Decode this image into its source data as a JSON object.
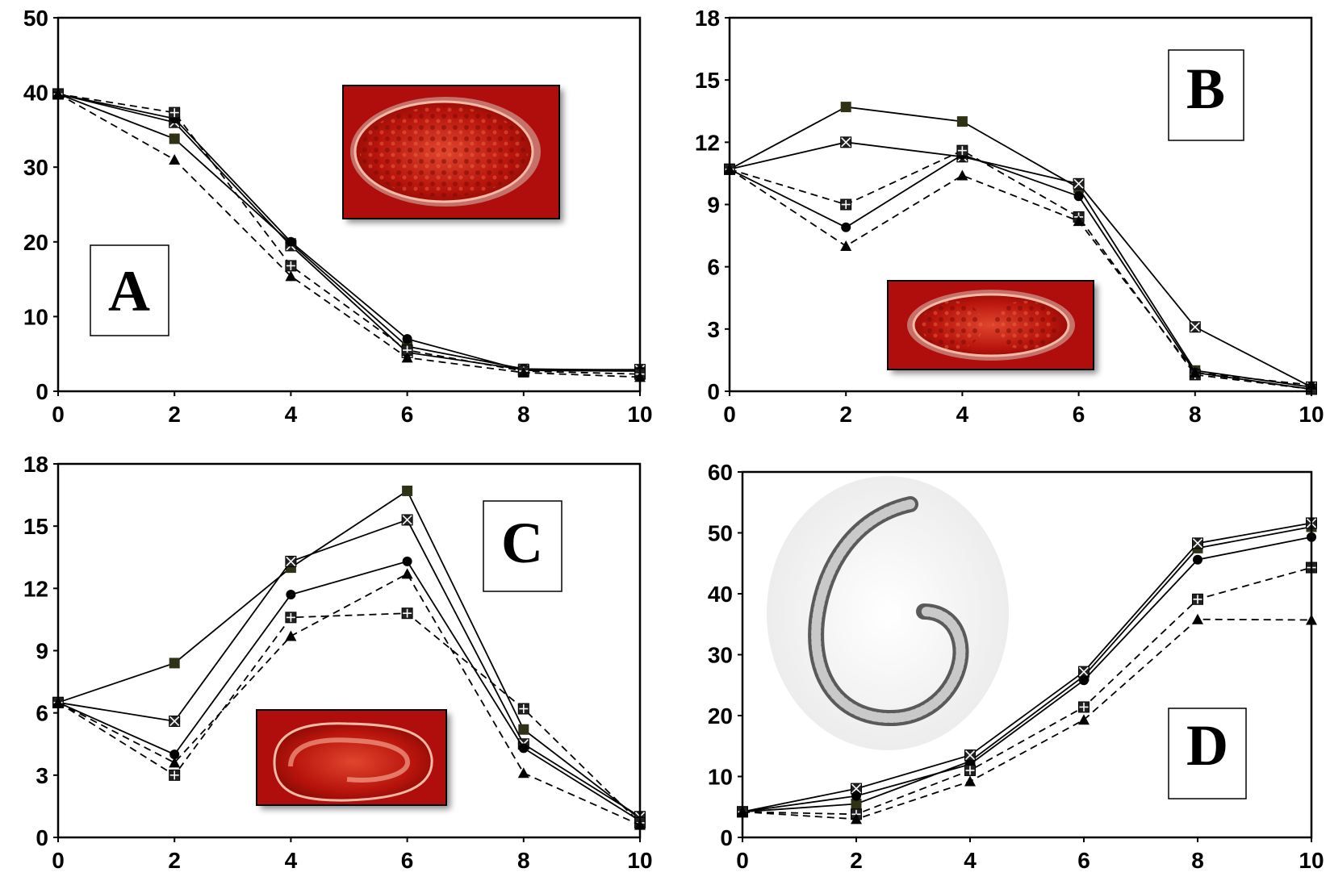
{
  "chart_data": [
    {
      "panel": "A",
      "type": "line",
      "x": [
        0,
        2,
        4,
        6,
        8,
        10
      ],
      "ylim": [
        0,
        50
      ],
      "yticks": [
        0,
        10,
        20,
        30,
        40,
        50
      ],
      "xticks": [
        0,
        2,
        4,
        6,
        8,
        10
      ],
      "title": "",
      "xlabel": "",
      "ylabel": "",
      "series": [
        {
          "marker": "square-filled",
          "dash": "solid",
          "values": [
            39.8,
            33.8,
            19.8,
            6.0,
            3.0,
            2.8
          ]
        },
        {
          "marker": "square-x",
          "dash": "solid",
          "values": [
            39.8,
            36.0,
            19.5,
            5.2,
            2.9,
            2.9
          ]
        },
        {
          "marker": "circle",
          "dash": "solid",
          "values": [
            39.8,
            36.5,
            20.0,
            7.0,
            2.8,
            2.7
          ]
        },
        {
          "marker": "square-cross",
          "dash": "dashed",
          "values": [
            39.8,
            37.3,
            16.8,
            5.5,
            2.7,
            2.3
          ]
        },
        {
          "marker": "triangle",
          "dash": "dashed",
          "values": [
            39.8,
            31.0,
            15.4,
            4.5,
            2.5,
            1.9
          ]
        }
      ]
    },
    {
      "panel": "B",
      "type": "line",
      "x": [
        0,
        2,
        4,
        6,
        8,
        10
      ],
      "ylim": [
        0,
        18
      ],
      "yticks": [
        0,
        3,
        6,
        9,
        12,
        15,
        18
      ],
      "xticks": [
        0,
        2,
        4,
        6,
        8,
        10
      ],
      "title": "",
      "xlabel": "",
      "ylabel": "",
      "series": [
        {
          "marker": "square-filled",
          "dash": "solid",
          "values": [
            10.7,
            13.7,
            13.0,
            9.8,
            1.0,
            0.2
          ]
        },
        {
          "marker": "square-x",
          "dash": "solid",
          "values": [
            10.7,
            12.0,
            11.3,
            10.0,
            3.1,
            0.2
          ]
        },
        {
          "marker": "circle",
          "dash": "solid",
          "values": [
            10.7,
            7.9,
            11.4,
            9.4,
            0.9,
            0.1
          ]
        },
        {
          "marker": "square-cross",
          "dash": "dashed",
          "values": [
            10.7,
            9.0,
            11.6,
            8.4,
            0.8,
            0.1
          ]
        },
        {
          "marker": "triangle",
          "dash": "dashed",
          "values": [
            10.7,
            7.0,
            10.4,
            8.2,
            0.9,
            0.3
          ]
        }
      ]
    },
    {
      "panel": "C",
      "type": "line",
      "x": [
        0,
        2,
        4,
        6,
        8,
        10
      ],
      "ylim": [
        0,
        18
      ],
      "yticks": [
        0,
        3,
        6,
        9,
        12,
        15,
        18
      ],
      "xticks": [
        0,
        2,
        4,
        6,
        8,
        10
      ],
      "title": "",
      "xlabel": "",
      "ylabel": "",
      "series": [
        {
          "marker": "square-filled",
          "dash": "solid",
          "values": [
            6.5,
            8.4,
            13.0,
            16.7,
            5.2,
            0.9
          ]
        },
        {
          "marker": "square-x",
          "dash": "solid",
          "values": [
            6.5,
            5.6,
            13.3,
            15.3,
            4.5,
            1.0
          ]
        },
        {
          "marker": "circle",
          "dash": "solid",
          "values": [
            6.5,
            4.0,
            11.7,
            13.3,
            4.3,
            0.8
          ]
        },
        {
          "marker": "square-cross",
          "dash": "dashed",
          "values": [
            6.5,
            3.0,
            10.6,
            10.8,
            6.2,
            0.7
          ]
        },
        {
          "marker": "triangle",
          "dash": "dashed",
          "values": [
            6.5,
            3.6,
            9.7,
            12.7,
            3.1,
            0.6
          ]
        }
      ]
    },
    {
      "panel": "D",
      "type": "line",
      "x": [
        0,
        2,
        4,
        6,
        8,
        10
      ],
      "ylim": [
        0,
        60
      ],
      "yticks": [
        0,
        10,
        20,
        30,
        40,
        50,
        60
      ],
      "xticks": [
        0,
        2,
        4,
        6,
        8,
        10
      ],
      "title": "",
      "xlabel": "",
      "ylabel": "",
      "series": [
        {
          "marker": "square-filled",
          "dash": "solid",
          "values": [
            4.2,
            5.5,
            12.5,
            26.5,
            47.5,
            51.0
          ]
        },
        {
          "marker": "square-x",
          "dash": "solid",
          "values": [
            4.2,
            8.0,
            13.5,
            27.2,
            48.3,
            51.6
          ]
        },
        {
          "marker": "circle",
          "dash": "solid",
          "values": [
            4.2,
            6.8,
            12.0,
            25.8,
            45.6,
            49.3
          ]
        },
        {
          "marker": "square-cross",
          "dash": "dashed",
          "values": [
            4.2,
            3.8,
            11.0,
            21.4,
            39.1,
            44.3
          ]
        },
        {
          "marker": "triangle",
          "dash": "dashed",
          "values": [
            4.2,
            3.0,
            9.2,
            19.3,
            35.8,
            35.7
          ]
        }
      ]
    }
  ],
  "panels": {
    "A": {
      "letter": "A",
      "image": "embryo-micrograph"
    },
    "B": {
      "letter": "B",
      "image": "embryo-micrograph"
    },
    "C": {
      "letter": "C",
      "image": "embryo-micrograph"
    },
    "D": {
      "letter": "D",
      "image": "nematode-micrograph"
    }
  },
  "colors": {
    "line": "#000000",
    "square_filled": "#2f3214",
    "micrograph_bg": "#cc1a10"
  }
}
